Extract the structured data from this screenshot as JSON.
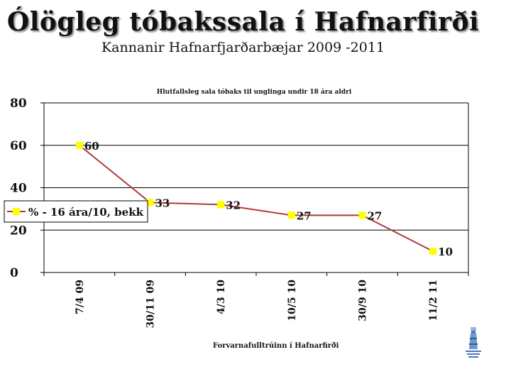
{
  "header": {
    "title": "Ólögleg tóbakssala í Hafnarfirði",
    "subtitle": "Kannanir Hafnarfjarðarbæjar  2009 -2011"
  },
  "footer": {
    "credit": "Forvarnafulltrúinn í Hafnarfirði"
  },
  "colors": {
    "line": "#b03a3a",
    "marker": "#ffff00",
    "grid": "#000000",
    "background": "#ffffff"
  },
  "chart_data": {
    "type": "line",
    "title": "Hlutfallsleg sala tóbaks til unglinga undir 18 ára aldri",
    "categories": [
      "7/4 09",
      "30/11 09",
      "4/3 10",
      "10/5 10",
      "30/9 10",
      "11/2 11"
    ],
    "series": [
      {
        "name": "% - 16 ára/10, bekk",
        "values": [
          60,
          33,
          32,
          27,
          27,
          10
        ]
      }
    ],
    "data_labels": [
      "60",
      "33",
      "32",
      "27",
      "27",
      "10"
    ],
    "y_ticks": [
      "0",
      "20",
      "40",
      "60",
      "80"
    ],
    "ylim": [
      0,
      80
    ],
    "grid": true,
    "legend_position": "left"
  }
}
